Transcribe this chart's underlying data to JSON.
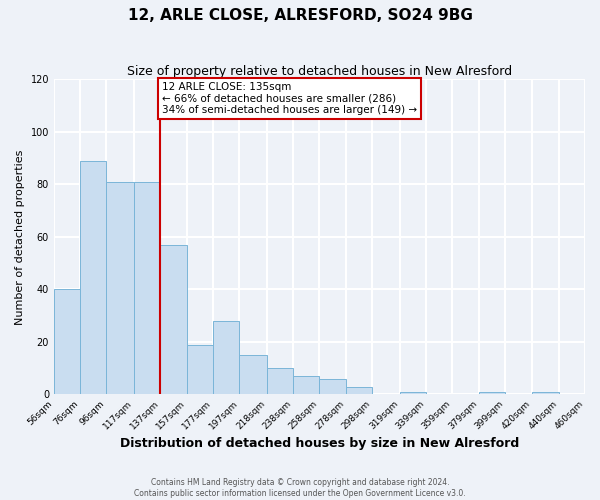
{
  "title": "12, ARLE CLOSE, ALRESFORD, SO24 9BG",
  "subtitle": "Size of property relative to detached houses in New Alresford",
  "xlabel": "Distribution of detached houses by size in New Alresford",
  "ylabel": "Number of detached properties",
  "bin_edges": [
    56,
    76,
    96,
    117,
    137,
    157,
    177,
    197,
    218,
    238,
    258,
    278,
    298,
    319,
    339,
    359,
    379,
    399,
    420,
    440,
    460
  ],
  "bar_heights": [
    40,
    89,
    81,
    81,
    57,
    19,
    28,
    15,
    10,
    7,
    6,
    3,
    0,
    1,
    0,
    0,
    1,
    0,
    1,
    0
  ],
  "bar_color": "#c9ddf0",
  "bar_edge_color": "#7ab5d8",
  "vline_x": 137,
  "vline_color": "#cc0000",
  "ylim": [
    0,
    120
  ],
  "yticks": [
    0,
    20,
    40,
    60,
    80,
    100,
    120
  ],
  "annotation_text_line1": "12 ARLE CLOSE: 135sqm",
  "annotation_text_line2": "← 66% of detached houses are smaller (286)",
  "annotation_text_line3": "34% of semi-detached houses are larger (149) →",
  "annotation_box_color": "#cc0000",
  "footer_line1": "Contains HM Land Registry data © Crown copyright and database right 2024.",
  "footer_line2": "Contains public sector information licensed under the Open Government Licence v3.0.",
  "background_color": "#eef2f8",
  "grid_color": "#ffffff",
  "title_fontsize": 11,
  "subtitle_fontsize": 9,
  "xlabel_fontsize": 9,
  "ylabel_fontsize": 8,
  "annotation_fontsize": 7.5,
  "footer_fontsize": 5.5,
  "tick_fontsize": 6.5,
  "tick_labels": [
    "56sqm",
    "76sqm",
    "96sqm",
    "117sqm",
    "137sqm",
    "157sqm",
    "177sqm",
    "197sqm",
    "218sqm",
    "238sqm",
    "258sqm",
    "278sqm",
    "298sqm",
    "319sqm",
    "339sqm",
    "359sqm",
    "379sqm",
    "399sqm",
    "420sqm",
    "440sqm",
    "460sqm"
  ]
}
